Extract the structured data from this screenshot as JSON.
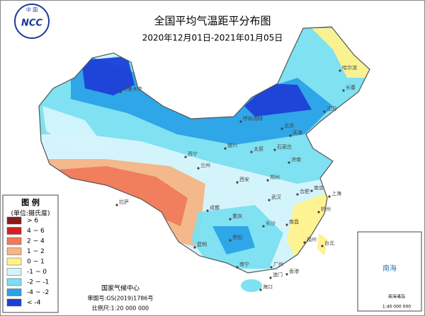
{
  "header": {
    "title": "全国平均气温距平分布图",
    "subtitle": "2020年12月01日-2021年01月05日"
  },
  "logo": {
    "top": "中 国",
    "text": "NCC"
  },
  "legend": {
    "title": "图 例",
    "unit": "(单位:摄氏度)",
    "items": [
      {
        "label": "> 6",
        "color": "#8b1a1a"
      },
      {
        "label": "4 ~ 6",
        "color": "#d42020"
      },
      {
        "label": "2 ~ 4",
        "color": "#f07a5a"
      },
      {
        "label": "1 ~ 2",
        "color": "#f6b487"
      },
      {
        "label": "0 ~ 1",
        "color": "#fff28c"
      },
      {
        "label": "-1 ~ 0",
        "color": "#d4f4fb"
      },
      {
        "label": "-2 ~ -1",
        "color": "#7adff0"
      },
      {
        "label": "-4 ~ -2",
        "color": "#2aa2e6"
      },
      {
        "label": "< -4",
        "color": "#1d3fd6"
      }
    ]
  },
  "cities": [
    "乌鲁木齐",
    "呼和浩特",
    "哈尔滨",
    "长春",
    "沈阳",
    "北京",
    "天津",
    "石家庄",
    "太原",
    "银川",
    "西宁",
    "兰州",
    "济南",
    "郑州",
    "西安",
    "拉萨",
    "成都",
    "重庆",
    "武汉",
    "合肥",
    "南京",
    "上海",
    "杭州",
    "长沙",
    "南昌",
    "福州",
    "台北",
    "贵阳",
    "昆明",
    "南宁",
    "广州",
    "香港",
    "澳门",
    "海口"
  ],
  "inset": {
    "sea": "南海",
    "islands": "南海诸岛",
    "scale": "1:40 000 000"
  },
  "footer": {
    "org": "国家气候中心",
    "approval": "审图号:GS(2019)1786号",
    "scale": "比例尺:1:20 000 000"
  }
}
